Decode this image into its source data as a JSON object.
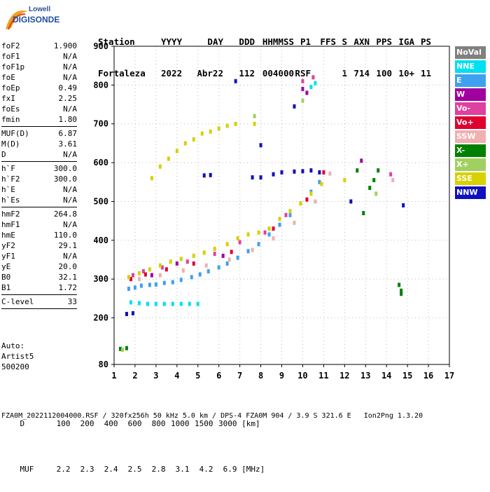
{
  "logo": {
    "line1": "Lowell",
    "line2": "DIGISONDE"
  },
  "header": {
    "labels": [
      "Station",
      "YYYY",
      "DAY",
      "DDD",
      "HHMMSS",
      "P1",
      "FFS",
      "S",
      "AXN",
      "PPS",
      "IGA",
      "PS"
    ],
    "values": [
      "Fortaleza",
      "2022",
      "Abr22",
      "112",
      "004000",
      "RSF",
      "",
      "1",
      "714",
      "100",
      "10+",
      "11"
    ]
  },
  "params_group1": [
    {
      "name": "foF2",
      "value": "1.900"
    },
    {
      "name": "foF1",
      "value": "N/A"
    },
    {
      "name": "foF1p",
      "value": "N/A"
    },
    {
      "name": "foE",
      "value": "N/A"
    },
    {
      "name": "foEp",
      "value": "0.49"
    },
    {
      "name": "fxI",
      "value": "2.25"
    },
    {
      "name": "foEs",
      "value": "N/A"
    },
    {
      "name": "fmin",
      "value": "1.80"
    }
  ],
  "params_group2": [
    {
      "name": "MUF(D)",
      "value": "6.87"
    },
    {
      "name": "M(D)",
      "value": "3.61"
    },
    {
      "name": "D",
      "value": "N/A"
    }
  ],
  "params_group3": [
    {
      "name": "h`F",
      "value": "300.0"
    },
    {
      "name": "h`F2",
      "value": "300.0"
    },
    {
      "name": "h`E",
      "value": "N/A"
    },
    {
      "name": "h`Es",
      "value": "N/A"
    }
  ],
  "params_group4": [
    {
      "name": "hmF2",
      "value": "264.8"
    },
    {
      "name": "hmF1",
      "value": "N/A"
    },
    {
      "name": "hmE",
      "value": "110.0"
    },
    {
      "name": "yF2",
      "value": "29.1"
    },
    {
      "name": "yF1",
      "value": "N/A"
    },
    {
      "name": "yE",
      "value": "20.0"
    },
    {
      "name": "B0",
      "value": "32.1"
    },
    {
      "name": "B1",
      "value": "1.72"
    }
  ],
  "params_group5": [
    {
      "name": "C-level",
      "value": "33"
    }
  ],
  "auto": {
    "line1": "Auto:",
    "line2": "Artist5",
    "line3": "500200"
  },
  "legend": [
    {
      "label": "NoVal",
      "color": "#808080"
    },
    {
      "label": "NNE",
      "color": "#00e0f0"
    },
    {
      "label": "E",
      "color": "#40a0f0"
    },
    {
      "label": "W",
      "color": "#a000a0"
    },
    {
      "label": "Vo-",
      "color": "#e040a0"
    },
    {
      "label": "Vo+",
      "color": "#e00030"
    },
    {
      "label": "SSW",
      "color": "#f0b0b0"
    },
    {
      "label": "X-",
      "color": "#008000"
    },
    {
      "label": "X+",
      "color": "#a0d060"
    },
    {
      "label": "SSE",
      "color": "#d8d000"
    },
    {
      "label": "NNW",
      "color": "#1010c0"
    }
  ],
  "bottom": {
    "d_label": "D",
    "d_values": [
      "100",
      "200",
      "400",
      "600",
      "800",
      "1000",
      "1500",
      "3000"
    ],
    "d_unit": "[km]",
    "muf_label": "MUF",
    "muf_values": [
      "2.2",
      "2.3",
      "2.4",
      "2.5",
      "2.8",
      "3.1",
      "4.2",
      "6.9"
    ],
    "muf_unit": "[MHz]"
  },
  "footer": "FZA0M_2022112004000.RSF / 320fx256h 50 kHz 5.0 km / DPS-4 FZA0M 904 / 3.9 S 321.6 E   Ion2Png 1.3.20",
  "chart_data": {
    "type": "scatter",
    "xlim": [
      1,
      17
    ],
    "ylim": [
      80,
      900
    ],
    "xticks": [
      1,
      2,
      3,
      4,
      5,
      6,
      7,
      8,
      9,
      10,
      11,
      12,
      13,
      14,
      15,
      16,
      17
    ],
    "yticks": [
      80,
      200,
      300,
      400,
      500,
      600,
      700,
      800,
      900
    ],
    "grid": true,
    "legend_position": "right",
    "series": [
      {
        "name": "NNE",
        "color": "#00e0f0",
        "points": [
          [
            1.8,
            240
          ],
          [
            2.2,
            238
          ],
          [
            2.6,
            236
          ],
          [
            3.0,
            236
          ],
          [
            3.4,
            236
          ],
          [
            3.8,
            236
          ],
          [
            4.2,
            236
          ],
          [
            4.6,
            236
          ],
          [
            5.0,
            236
          ],
          [
            10.4,
            795
          ],
          [
            10.6,
            805
          ]
        ]
      },
      {
        "name": "E",
        "color": "#40a0f0",
        "points": [
          [
            1.7,
            275
          ],
          [
            2.0,
            278
          ],
          [
            2.3,
            283
          ],
          [
            2.7,
            285
          ],
          [
            3.0,
            286
          ],
          [
            3.4,
            290
          ],
          [
            3.8,
            292
          ],
          [
            4.2,
            298
          ],
          [
            4.7,
            305
          ],
          [
            5.1,
            312
          ],
          [
            5.5,
            320
          ],
          [
            6.0,
            330
          ],
          [
            6.4,
            340
          ],
          [
            6.9,
            355
          ],
          [
            7.4,
            372
          ],
          [
            7.9,
            390
          ],
          [
            8.4,
            415
          ],
          [
            8.9,
            440
          ],
          [
            9.4,
            465
          ],
          [
            9.9,
            495
          ],
          [
            10.4,
            525
          ],
          [
            10.8,
            550
          ]
        ]
      },
      {
        "name": "W",
        "color": "#a000a0",
        "points": [
          [
            10.0,
            790
          ],
          [
            10.2,
            780
          ],
          [
            12.8,
            605
          ],
          [
            2.8,
            310
          ],
          [
            4.0,
            340
          ],
          [
            6.2,
            360
          ]
        ]
      },
      {
        "name": "Vo-",
        "color": "#e040a0",
        "points": [
          [
            1.9,
            310
          ],
          [
            2.4,
            320
          ],
          [
            3.3,
            330
          ],
          [
            4.5,
            345
          ],
          [
            5.8,
            365
          ],
          [
            7.0,
            395
          ],
          [
            8.2,
            420
          ],
          [
            9.2,
            465
          ],
          [
            10.0,
            810
          ],
          [
            10.5,
            820
          ],
          [
            14.2,
            570
          ]
        ]
      },
      {
        "name": "Vo+",
        "color": "#e00030",
        "points": [
          [
            1.8,
            300
          ],
          [
            2.5,
            312
          ],
          [
            3.5,
            325
          ],
          [
            4.8,
            340
          ],
          [
            6.6,
            370
          ],
          [
            8.6,
            430
          ],
          [
            10.2,
            505
          ],
          [
            11.0,
            575
          ]
        ]
      },
      {
        "name": "SSW",
        "color": "#f0b0b0",
        "points": [
          [
            2.2,
            300
          ],
          [
            3.2,
            310
          ],
          [
            4.3,
            322
          ],
          [
            5.4,
            335
          ],
          [
            6.5,
            350
          ],
          [
            7.6,
            375
          ],
          [
            8.6,
            405
          ],
          [
            9.6,
            445
          ],
          [
            10.6,
            500
          ],
          [
            11.3,
            572
          ],
          [
            14.3,
            555
          ]
        ]
      },
      {
        "name": "X-",
        "color": "#008000",
        "points": [
          [
            1.3,
            120
          ],
          [
            1.6,
            122
          ],
          [
            12.6,
            580
          ],
          [
            12.9,
            470
          ],
          [
            13.2,
            535
          ],
          [
            13.4,
            555
          ],
          [
            13.6,
            580
          ],
          [
            14.6,
            285
          ],
          [
            14.7,
            270
          ],
          [
            14.7,
            262
          ]
        ]
      },
      {
        "name": "X+",
        "color": "#a0d060",
        "points": [
          [
            1.4,
            118
          ],
          [
            7.7,
            720
          ],
          [
            10.0,
            760
          ],
          [
            13.5,
            520
          ]
        ]
      },
      {
        "name": "SSE",
        "color": "#d8d000",
        "points": [
          [
            1.7,
            305
          ],
          [
            2.2,
            315
          ],
          [
            2.7,
            325
          ],
          [
            3.2,
            335
          ],
          [
            3.7,
            345
          ],
          [
            4.2,
            352
          ],
          [
            4.8,
            360
          ],
          [
            5.3,
            368
          ],
          [
            5.8,
            378
          ],
          [
            6.4,
            390
          ],
          [
            6.9,
            405
          ],
          [
            7.4,
            415
          ],
          [
            7.9,
            420
          ],
          [
            8.4,
            430
          ],
          [
            8.9,
            455
          ],
          [
            9.4,
            475
          ],
          [
            9.9,
            495
          ],
          [
            10.4,
            520
          ],
          [
            10.9,
            545
          ],
          [
            2.8,
            560
          ],
          [
            3.2,
            590
          ],
          [
            3.6,
            610
          ],
          [
            4.0,
            630
          ],
          [
            4.4,
            650
          ],
          [
            4.8,
            660
          ],
          [
            5.2,
            675
          ],
          [
            5.6,
            680
          ],
          [
            6.0,
            688
          ],
          [
            6.4,
            695
          ],
          [
            6.8,
            700
          ],
          [
            7.7,
            700
          ],
          [
            12.0,
            555
          ]
        ]
      },
      {
        "name": "NNW",
        "color": "#1010c0",
        "points": [
          [
            1.6,
            210
          ],
          [
            1.9,
            212
          ],
          [
            5.3,
            567
          ],
          [
            5.6,
            568
          ],
          [
            7.6,
            562
          ],
          [
            8.0,
            562
          ],
          [
            8.6,
            570
          ],
          [
            9.0,
            575
          ],
          [
            9.6,
            577
          ],
          [
            10.0,
            578
          ],
          [
            10.4,
            580
          ],
          [
            10.8,
            575
          ],
          [
            12.3,
            500
          ],
          [
            14.8,
            490
          ],
          [
            8.0,
            645
          ],
          [
            6.8,
            810
          ],
          [
            9.6,
            745
          ]
        ]
      },
      {
        "name": "NoVal",
        "color": "#808080",
        "points": []
      }
    ]
  }
}
